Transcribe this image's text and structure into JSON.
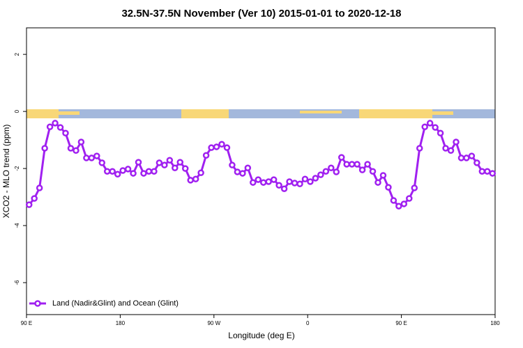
{
  "chart_data": {
    "type": "line",
    "title": "32.5N-37.5N November (Ver 10)   2015-01-01 to 2020-12-18",
    "x_label": "Longitude (deg E)",
    "y_label": "XCO2 - MLO trend (ppm)",
    "x": [
      92.5,
      97.5,
      102.5,
      107.5,
      112.5,
      117.5,
      122.5,
      127.5,
      132.5,
      137.5,
      142.5,
      147.5,
      152.5,
      157.5,
      162.5,
      167.5,
      172.5,
      177.5,
      182.5,
      187.5,
      192.5,
      197.5,
      202.5,
      207.5,
      212.5,
      217.5,
      222.5,
      227.5,
      232.5,
      237.5,
      242.5,
      247.5,
      252.5,
      257.5,
      262.5,
      267.5,
      272.5,
      277.5,
      282.5,
      287.5,
      292.5,
      297.5,
      302.5,
      307.5,
      312.5,
      317.5,
      322.5,
      327.5,
      332.5,
      337.5,
      342.5,
      347.5,
      352.5,
      357.5,
      362.5,
      367.5,
      372.5,
      377.5,
      382.5,
      387.5,
      392.5,
      397.5,
      402.5,
      407.5,
      412.5,
      417.5,
      422.5,
      427.5,
      432.5,
      437.5,
      442.5,
      447.5,
      452.5,
      457.5,
      462.5,
      467.5,
      472.5,
      477.5,
      482.5,
      487.5,
      492.5,
      497.5,
      502.5,
      507.5,
      512.5,
      517.5,
      522.5,
      527.5,
      532.5,
      537.5
    ],
    "series": [
      {
        "name": "Land (Nadir&Glint) and Ocean (Glint)",
        "color": "#a020f0",
        "values": [
          -3.27,
          -3.05,
          -2.68,
          -1.29,
          -0.54,
          -0.41,
          -0.56,
          -0.76,
          -1.29,
          -1.37,
          -1.07,
          -1.63,
          -1.63,
          -1.56,
          -1.8,
          -2.1,
          -2.1,
          -2.2,
          -2.07,
          -2.02,
          -2.17,
          -1.78,
          -2.17,
          -2.1,
          -2.1,
          -1.8,
          -1.88,
          -1.71,
          -1.98,
          -1.78,
          -2.0,
          -2.41,
          -2.37,
          -2.15,
          -1.54,
          -1.27,
          -1.24,
          -1.15,
          -1.27,
          -1.88,
          -2.12,
          -2.17,
          -1.98,
          -2.49,
          -2.39,
          -2.49,
          -2.46,
          -2.39,
          -2.59,
          -2.71,
          -2.46,
          -2.51,
          -2.54,
          -2.37,
          -2.46,
          -2.34,
          -2.22,
          -2.1,
          -1.98,
          -2.12,
          -1.61,
          -1.85,
          -1.85,
          -1.85,
          -2.05,
          -1.85,
          -2.1,
          -2.49,
          -2.24,
          -2.66,
          -3.12,
          -3.32,
          -3.24,
          -3.05,
          -2.68,
          -1.29,
          -0.54,
          -0.41,
          -0.56,
          -0.76,
          -1.29,
          -1.37,
          -1.07,
          -1.63,
          -1.63,
          -1.56,
          -1.8,
          -2.1,
          -2.1,
          -2.17
        ]
      }
    ],
    "xlim": [
      90,
      540
    ],
    "xticks": [
      {
        "value": 90,
        "label": "90 E"
      },
      180,
      {
        "value": 270,
        "label": "90 W"
      },
      {
        "value": 360,
        "label": "0"
      },
      {
        "value": 450,
        "label": "90 E"
      },
      {
        "value": 540,
        "label": "180"
      }
    ],
    "ylim": [
      -7.12,
      2.93
    ],
    "yticks": [
      -6,
      -4,
      -2,
      0,
      2
    ],
    "legend": "bottom-left"
  }
}
